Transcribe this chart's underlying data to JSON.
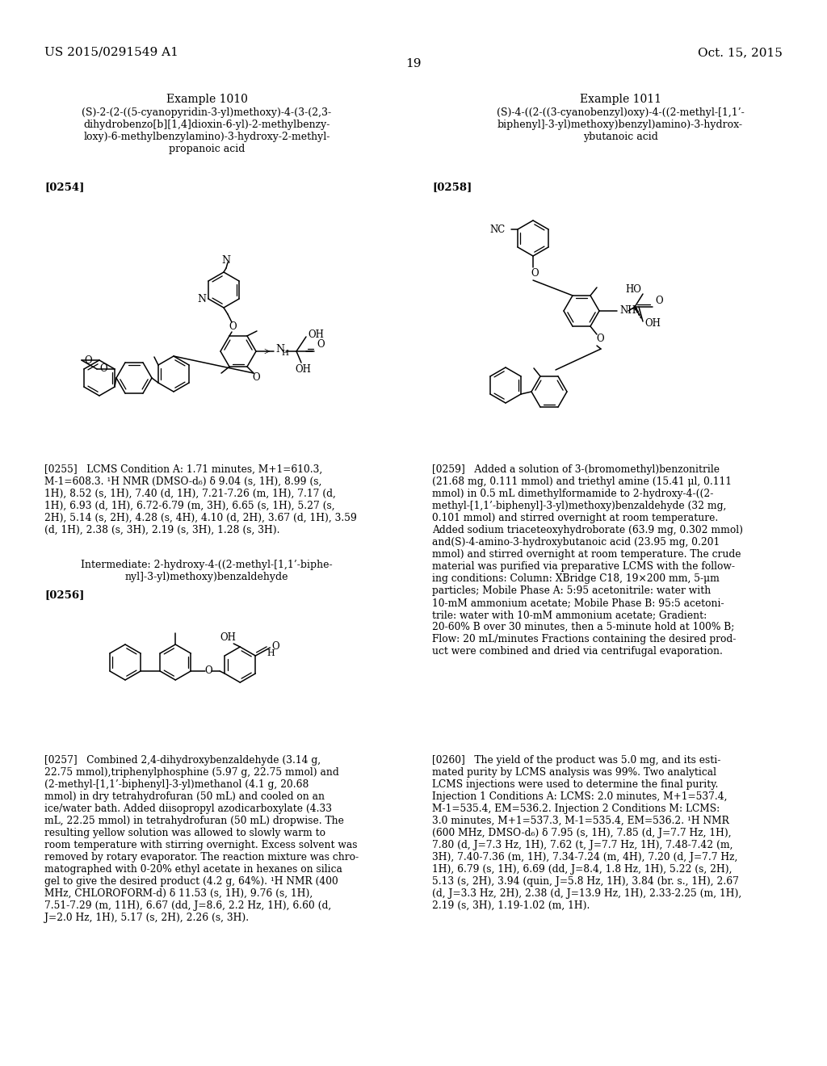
{
  "background_color": "#ffffff",
  "page_header_left": "US 2015/0291549 A1",
  "page_header_right": "Oct. 15, 2015",
  "page_number": "19",
  "example1010_title": "Example 1010",
  "example1010_compound": "(S)-2-(2-((5-cyanopyridin-3-yl)methoxy)-4-(3-(2,3-\ndihydrobenzo[b][1,4]dioxin-6-yl)-2-methylbenzy-\nloxy)-6-methylbenzylamino)-3-hydroxy-2-methyl-\npropanoic acid",
  "example1010_para254_tag": "[0254]",
  "example1010_para255_text": "[0255]   LCMS Condition A: 1.71 minutes, M+1=610.3,\nM-1=608.3. ¹H NMR (DMSO-d₆) δ 9.04 (s, 1H), 8.99 (s,\n1H), 8.52 (s, 1H), 7.40 (d, 1H), 7.21-7.26 (m, 1H), 7.17 (d,\n1H), 6.93 (d, 1H), 6.72-6.79 (m, 3H), 6.65 (s, 1H), 5.27 (s,\n2H), 5.14 (s, 2H), 4.28 (s, 4H), 4.10 (d, 2H), 3.67 (d, 1H), 3.59\n(d, 1H), 2.38 (s, 3H), 2.19 (s, 3H), 1.28 (s, 3H).",
  "example1010_intermediate_title": "Intermediate: 2-hydroxy-4-((2-methyl-[1,1’-biphe-\nnyl]-3-yl)methoxy)benzaldehyde",
  "example1010_para256_tag": "[0256]",
  "example1010_para257_text": "[0257]   Combined 2,4-dihydroxybenzaldehyde (3.14 g,\n22.75 mmol),triphenylphosphine (5.97 g, 22.75 mmol) and\n(2-methyl-[1,1’-biphenyl]-3-yl)methanol (4.1 g, 20.68\nmmol) in dry tetrahydrofuran (50 mL) and cooled on an\nice/water bath. Added diisopropyl azodicarboxylate (4.33\nmL, 22.25 mmol) in tetrahydrofuran (50 mL) dropwise. The\nresulting yellow solution was allowed to slowly warm to\nroom temperature with stirring overnight. Excess solvent was\nremoved by rotary evaporator. The reaction mixture was chro-\nmatographed with 0-20% ethyl acetate in hexanes on silica\ngel to give the desired product (4.2 g, 64%). ¹H NMR (400\nMHz, CHLOROFORM-d) δ 11.53 (s, 1H), 9.76 (s, 1H),\n7.51-7.29 (m, 11H), 6.67 (dd, J=8.6, 2.2 Hz, 1H), 6.60 (d,\nJ=2.0 Hz, 1H), 5.17 (s, 2H), 2.26 (s, 3H).",
  "example1011_title": "Example 1011",
  "example1011_compound": "(S)-4-((2-((3-cyanobenzyl)oxy)-4-((2-methyl-[1,1’-\nbiphenyl]-3-yl)methoxy)benzyl)amino)-3-hydrox-\nybutanoic acid",
  "example1011_para258_tag": "[0258]",
  "example1011_para259_text": "[0259]   Added a solution of 3-(bromomethyl)benzonitrile\n(21.68 mg, 0.111 mmol) and triethyl amine (15.41 μl, 0.111\nmmol) in 0.5 mL dimethylformamide to 2-hydroxy-4-((2-\nmethyl-[1,1’-biphenyl]-3-yl)methoxy)benzaldehyde (32 mg,\n0.101 mmol) and stirred overnight at room temperature.\nAdded sodium triaceteoxyhydroborate (63.9 mg, 0.302 mmol)\nand(S)-4-amino-3-hydroxybutanoic acid (23.95 mg, 0.201\nmmol) and stirred overnight at room temperature. The crude\nmaterial was purified via preparative LCMS with the follow-\ning conditions: Column: XBridge C18, 19×200 mm, 5-μm\nparticles; Mobile Phase A: 5:95 acetonitrile: water with\n10-mM ammonium acetate; Mobile Phase B: 95:5 acetoni-\ntrile: water with 10-mM ammonium acetate; Gradient:\n20-60% B over 30 minutes, then a 5-minute hold at 100% B;\nFlow: 20 mL/minutes Fractions containing the desired prod-\nuct were combined and dried via centrifugal evaporation.",
  "example1011_para260_text": "[0260]   The yield of the product was 5.0 mg, and its esti-\nmated purity by LCMS analysis was 99%. Two analytical\nLCMS injections were used to determine the final purity.\nInjection 1 Conditions A: LCMS: 2.0 minutes, M+1=537.4,\nM-1=535.4, EM=536.2. Injection 2 Conditions M: LCMS:\n3.0 minutes, M+1=537.3, M-1=535.4, EM=536.2. ¹H NMR\n(600 MHz, DMSO-d₆) δ 7.95 (s, 1H), 7.85 (d, J=7.7 Hz, 1H),\n7.80 (d, J=7.3 Hz, 1H), 7.62 (t, J=7.7 Hz, 1H), 7.48-7.42 (m,\n3H), 7.40-7.36 (m, 1H), 7.34-7.24 (m, 4H), 7.20 (d, J=7.7 Hz,\n1H), 6.79 (s, 1H), 6.69 (dd, J=8.4, 1.8 Hz, 1H), 5.22 (s, 2H),\n5.13 (s, 2H), 3.94 (quin, J=5.8 Hz, 1H), 3.84 (br. s., 1H), 2.67\n(d, J=3.3 Hz, 2H), 2.38 (d, J=13.9 Hz, 1H), 2.33-2.25 (m, 1H),\n2.19 (s, 3H), 1.19-1.02 (m, 1H)."
}
